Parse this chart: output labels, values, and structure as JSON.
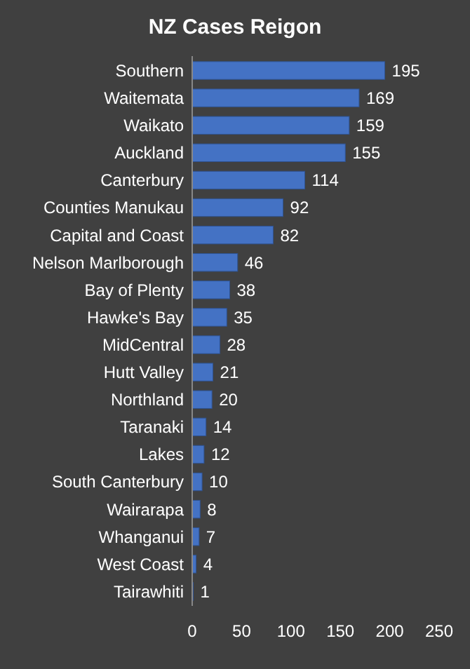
{
  "chart_data": {
    "type": "bar",
    "orientation": "horizontal",
    "title": "NZ Cases Reigon",
    "categories": [
      "Southern",
      "Waitemata",
      "Waikato",
      "Auckland",
      "Canterbury",
      "Counties Manukau",
      "Capital and Coast",
      "Nelson Marlborough",
      "Bay of Plenty",
      "Hawke's Bay",
      "MidCentral",
      "Hutt Valley",
      "Northland",
      "Taranaki",
      "Lakes",
      "South Canterbury",
      "Wairarapa",
      "Whanganui",
      "West Coast",
      "Tairawhiti"
    ],
    "values": [
      195,
      169,
      159,
      155,
      114,
      92,
      82,
      46,
      38,
      35,
      28,
      21,
      20,
      14,
      12,
      10,
      8,
      7,
      4,
      1
    ],
    "color": "#4472c4",
    "xlim": [
      0,
      250
    ],
    "xticks": [
      0,
      50,
      100,
      150,
      200,
      250
    ],
    "data_labels": true
  }
}
